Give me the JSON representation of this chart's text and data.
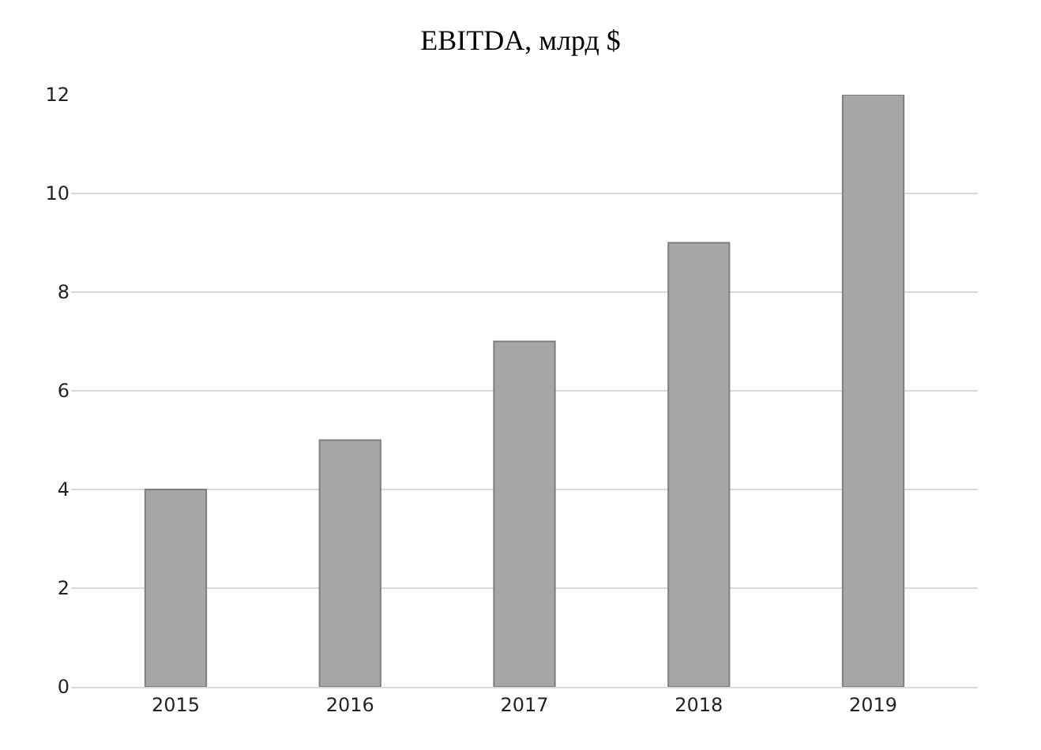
{
  "chart_data": {
    "type": "bar",
    "title": "EBITDA, млрд $",
    "categories": [
      "2015",
      "2016",
      "2017",
      "2018",
      "2019"
    ],
    "values": [
      4,
      5,
      7,
      9,
      12
    ],
    "color": "#a6a6a6",
    "ylim": [
      0,
      12
    ],
    "yticks": [
      0,
      2,
      4,
      6,
      8,
      10,
      12
    ],
    "grid": "y"
  }
}
